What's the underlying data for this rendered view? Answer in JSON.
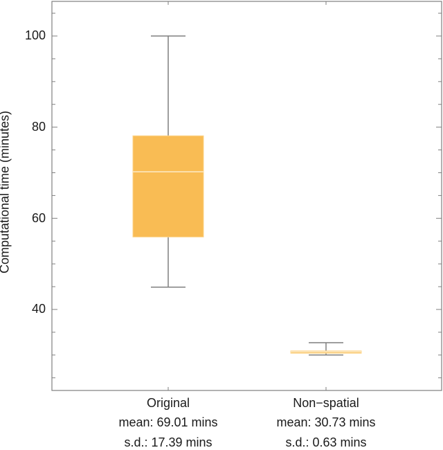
{
  "chart_data": {
    "type": "box",
    "title": "",
    "xlabel": "",
    "ylabel": "Computational time (minutes)",
    "ylim": [
      22,
      109
    ],
    "yticks": [
      40,
      60,
      80,
      100
    ],
    "yminor_step": 5,
    "grid": false,
    "categories": [
      "Original",
      "Non−spatial"
    ],
    "category_labels": [
      [
        "Original",
        "mean: 69.01 mins",
        "s.d.: 17.39 mins"
      ],
      [
        "Non−spatial",
        "mean: 30.73 mins",
        "s.d.: 0.63 mins"
      ]
    ],
    "series": [
      {
        "name": "Original",
        "min": 44.9,
        "q1": 55.9,
        "median": 70.2,
        "q3": 78.1,
        "max": 100.0,
        "mean": 69.01,
        "sd": 17.39
      },
      {
        "name": "Non−spatial",
        "min": 30.0,
        "q1": 30.4,
        "median": 30.7,
        "q3": 30.9,
        "max": 32.7,
        "mean": 30.73,
        "sd": 0.63
      }
    ],
    "colors": {
      "box": "#F9BC54",
      "median": "#FDEBC8",
      "whisker": "#7f7f7f",
      "frame": "#7f7f7f"
    }
  },
  "labels": {
    "ylabel": "Computational time (minutes)",
    "yticks": [
      "40",
      "60",
      "80",
      "100"
    ],
    "cat0": {
      "name": "Original",
      "mean": "mean: 69.01 mins",
      "sd": "s.d.: 17.39 mins"
    },
    "cat1": {
      "name": "Non−spatial",
      "mean": "mean: 30.73 mins",
      "sd": "s.d.: 0.63 mins"
    }
  }
}
